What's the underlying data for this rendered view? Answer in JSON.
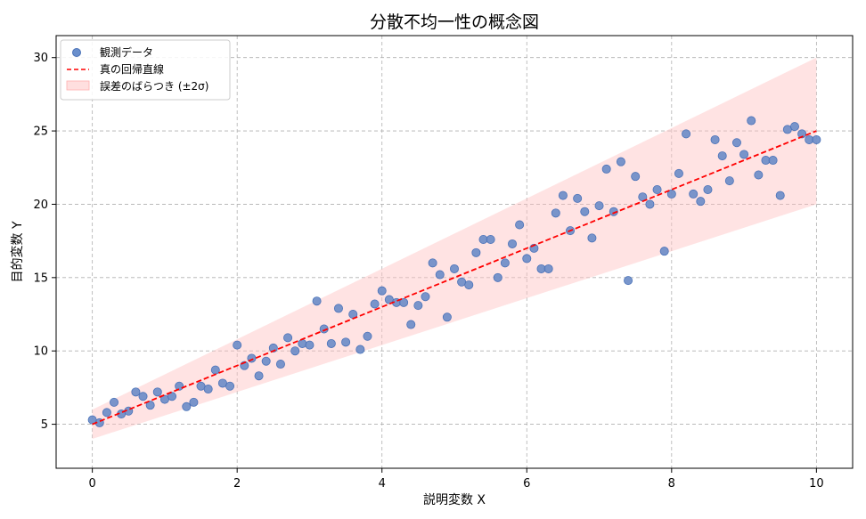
{
  "chart_data": {
    "type": "scatter",
    "title": "分散不均一性の概念図",
    "xlabel": "説明変数 X",
    "ylabel": "目的変数 Y",
    "xlim": [
      -0.5,
      10.5
    ],
    "ylim": [
      2.0,
      31.5
    ],
    "xticks": [
      0,
      2,
      4,
      6,
      8,
      10
    ],
    "yticks": [
      5,
      10,
      15,
      20,
      25,
      30
    ],
    "grid": true,
    "legend_position": "top-left",
    "legend": [
      "観測データ",
      "真の回帰直線",
      "誤差のばらつき (±2σ)"
    ],
    "colors": {
      "points": "#4a72b8",
      "line": "#ff0000",
      "band": "#ffc0c0"
    },
    "regression_line": {
      "x": [
        0,
        10
      ],
      "y": [
        5,
        25
      ]
    },
    "band": {
      "x": [
        0,
        10
      ],
      "lower": [
        4,
        20
      ],
      "upper": [
        6,
        30
      ]
    },
    "points": {
      "x": [
        0.0,
        0.1,
        0.2,
        0.3,
        0.4,
        0.5,
        0.6,
        0.7,
        0.8,
        0.9,
        1.0,
        1.1,
        1.2,
        1.3,
        1.4,
        1.5,
        1.6,
        1.7,
        1.8,
        1.9,
        2.0,
        2.1,
        2.2,
        2.3,
        2.4,
        2.5,
        2.6,
        2.7,
        2.8,
        2.9,
        3.0,
        3.1,
        3.2,
        3.3,
        3.4,
        3.5,
        3.6,
        3.7,
        3.8,
        3.9,
        4.0,
        4.1,
        4.2,
        4.3,
        4.4,
        4.5,
        4.6,
        4.7,
        4.8,
        4.9,
        5.0,
        5.1,
        5.2,
        5.3,
        5.4,
        5.5,
        5.6,
        5.7,
        5.8,
        5.9,
        6.0,
        6.1,
        6.2,
        6.3,
        6.4,
        6.5,
        6.6,
        6.7,
        6.8,
        6.9,
        7.0,
        7.1,
        7.2,
        7.3,
        7.4,
        7.5,
        7.6,
        7.7,
        7.8,
        7.9,
        8.0,
        8.1,
        8.2,
        8.3,
        8.4,
        8.5,
        8.6,
        8.7,
        8.8,
        8.9,
        9.0,
        9.1,
        9.2,
        9.3,
        9.4,
        9.5,
        9.6,
        9.7,
        9.8,
        9.9,
        10.0
      ],
      "y": [
        5.3,
        5.1,
        5.8,
        6.5,
        5.7,
        5.9,
        7.2,
        6.9,
        6.3,
        7.2,
        6.7,
        6.9,
        7.6,
        6.2,
        6.5,
        7.6,
        7.4,
        8.7,
        7.8,
        7.6,
        10.4,
        9.0,
        9.5,
        8.3,
        9.3,
        10.2,
        9.1,
        10.9,
        10.0,
        10.5,
        10.4,
        13.4,
        11.5,
        10.5,
        12.9,
        10.6,
        12.5,
        10.1,
        11.0,
        13.2,
        14.1,
        13.5,
        13.3,
        13.3,
        11.8,
        13.1,
        13.7,
        16.0,
        15.2,
        12.3,
        15.6,
        14.7,
        14.5,
        16.7,
        17.6,
        17.6,
        15.0,
        16.0,
        17.3,
        18.6,
        16.3,
        17.0,
        15.6,
        15.6,
        19.4,
        20.6,
        18.2,
        20.4,
        19.5,
        17.7,
        19.9,
        22.4,
        19.5,
        22.9,
        14.8,
        21.9,
        20.5,
        20.0,
        21.0,
        16.8,
        20.7,
        22.1,
        24.8,
        20.7,
        20.2,
        21.0,
        24.4,
        23.3,
        21.6,
        24.2,
        23.4,
        25.7,
        22.0,
        23.0,
        23.0,
        20.6,
        25.1,
        25.3,
        24.8,
        24.4,
        24.4
      ]
    }
  }
}
